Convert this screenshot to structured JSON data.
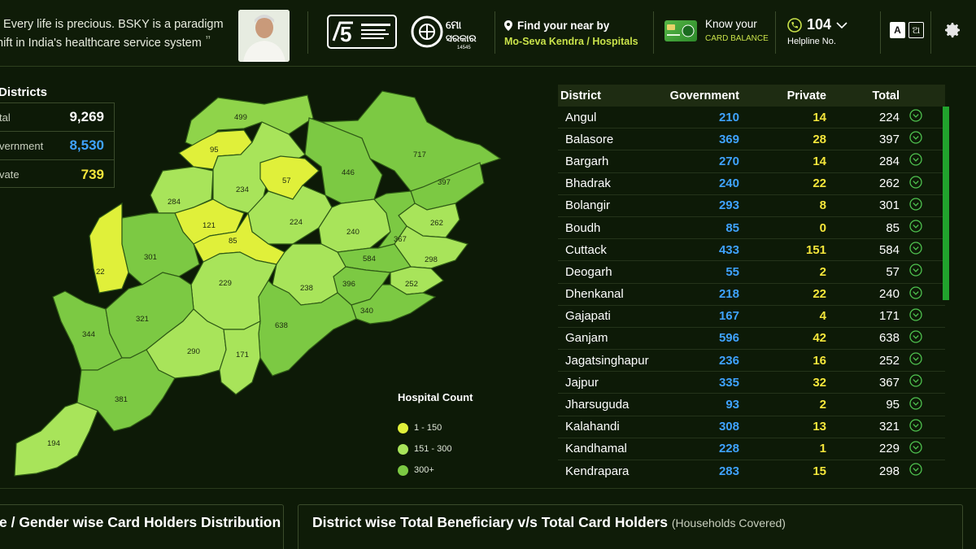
{
  "header": {
    "quote_l1": ". Every life is precious. BSKY is a paradigm",
    "quote_l2": "hift in India's healthcare service system",
    "t5_logo": "5T-logo",
    "mo_sarkar_logo": "mo-sarkar-logo",
    "find_l1": "Find your near by",
    "find_l2": "Mo-Seva Kendra / Hospitals",
    "card_l1": "Know your",
    "card_l2": "CARD BALANCE",
    "helpline_num": "104",
    "helpline_label": "Helpline No.",
    "lang_en": "A",
    "lang_od": "ଅ"
  },
  "stats": {
    "title": "Districts",
    "rows": [
      {
        "label": "tal",
        "value": "9,269",
        "color": "#ffffff"
      },
      {
        "label": "vernment",
        "value": "8,530",
        "color": "#3fa3ff"
      },
      {
        "label": "vate",
        "value": "739",
        "color": "#f5e63b"
      }
    ]
  },
  "map": {
    "labels": [
      "499",
      "95",
      "717",
      "57",
      "446",
      "234",
      "284",
      "397",
      "121",
      "224",
      "262",
      "240",
      "85",
      "301",
      "367",
      "22",
      "584",
      "298",
      "229",
      "396",
      "238",
      "252",
      "340",
      "344",
      "321",
      "638",
      "290",
      "171",
      "381",
      "194"
    ],
    "legend_title": "Hospital Count",
    "legend": [
      {
        "label": "1 - 150",
        "color": "#e0f03a"
      },
      {
        "label": "151 - 300",
        "color": "#a8e45a"
      },
      {
        "label": "300+",
        "color": "#7cc943"
      }
    ]
  },
  "table": {
    "headers": {
      "district": "District",
      "government": "Government",
      "private": "Private",
      "total": "Total"
    },
    "rows": [
      {
        "district": "Angul",
        "government": "210",
        "private": "14",
        "total": "224"
      },
      {
        "district": "Balasore",
        "government": "369",
        "private": "28",
        "total": "397"
      },
      {
        "district": "Bargarh",
        "government": "270",
        "private": "14",
        "total": "284"
      },
      {
        "district": "Bhadrak",
        "government": "240",
        "private": "22",
        "total": "262"
      },
      {
        "district": "Bolangir",
        "government": "293",
        "private": "8",
        "total": "301"
      },
      {
        "district": "Boudh",
        "government": "85",
        "private": "0",
        "total": "85"
      },
      {
        "district": "Cuttack",
        "government": "433",
        "private": "151",
        "total": "584"
      },
      {
        "district": "Deogarh",
        "government": "55",
        "private": "2",
        "total": "57"
      },
      {
        "district": "Dhenkanal",
        "government": "218",
        "private": "22",
        "total": "240"
      },
      {
        "district": "Gajapati",
        "government": "167",
        "private": "4",
        "total": "171"
      },
      {
        "district": "Ganjam",
        "government": "596",
        "private": "42",
        "total": "638"
      },
      {
        "district": "Jagatsinghapur",
        "government": "236",
        "private": "16",
        "total": "252"
      },
      {
        "district": "Jajpur",
        "government": "335",
        "private": "32",
        "total": "367"
      },
      {
        "district": "Jharsuguda",
        "government": "93",
        "private": "2",
        "total": "95"
      },
      {
        "district": "Kalahandi",
        "government": "308",
        "private": "13",
        "total": "321"
      },
      {
        "district": "Kandhamal",
        "government": "228",
        "private": "1",
        "total": "229"
      },
      {
        "district": "Kendrapara",
        "government": "283",
        "private": "15",
        "total": "298"
      }
    ]
  },
  "panels": {
    "left_title": "e / Gender wise Card Holders Distribution",
    "right_title": "District wise Total Beneficiary v/s Total Card Holders",
    "right_sub": "(Households Covered)"
  },
  "colors": {
    "blue": "#3fa3ff",
    "yellow": "#f5e63b",
    "accent_green": "#c9e24a",
    "bg": "#0d1a07"
  }
}
